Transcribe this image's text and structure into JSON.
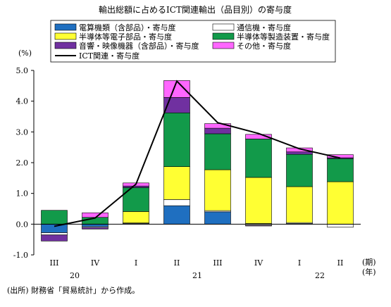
{
  "chart_data": {
    "type": "bar",
    "title": "輸出総額に占めるICT関連輸出（品目別）の寄与度",
    "ylabel": "(%)",
    "x_unit_label": "(期)",
    "year_unit_label": "(年)",
    "ylim": [
      -1.0,
      5.0
    ],
    "y_ticks": [
      "5.0",
      "4.0",
      "3.0",
      "2.0",
      "1.0",
      "0.0",
      "-1.0"
    ],
    "categories": [
      "III",
      "IV",
      "I",
      "II",
      "III",
      "IV",
      "I",
      "II"
    ],
    "year_labels": [
      {
        "label": "20",
        "span": [
          0,
          1
        ]
      },
      {
        "label": "21",
        "span": [
          2,
          5
        ]
      },
      {
        "label": "22",
        "span": [
          6,
          7
        ]
      }
    ],
    "stacked": true,
    "series": [
      {
        "name": "電算機類（含部品）・寄与度",
        "color": "#1f6fc0",
        "type": "bar",
        "values": [
          -0.28,
          -0.08,
          0.02,
          0.6,
          0.4,
          0.02,
          0.02,
          0.0
        ]
      },
      {
        "name": "通信機・寄与度",
        "color": "#ffffff",
        "type": "bar",
        "values": [
          -0.07,
          -0.03,
          0.02,
          0.2,
          0.04,
          -0.04,
          0.03,
          -0.1
        ]
      },
      {
        "name": "半導体等電子部品・寄与度",
        "color": "#ffff33",
        "type": "bar",
        "values": [
          0.0,
          0.0,
          0.37,
          1.07,
          1.33,
          1.5,
          1.17,
          1.38
        ]
      },
      {
        "name": "半導体等製造装置・寄与度",
        "color": "#129a4a",
        "type": "bar",
        "values": [
          0.45,
          0.22,
          0.78,
          1.75,
          1.17,
          1.25,
          1.05,
          0.75
        ]
      },
      {
        "name": "音響・映像機器（含部品）・寄与度",
        "color": "#7030a0",
        "type": "bar",
        "values": [
          -0.2,
          -0.05,
          0.05,
          0.5,
          0.18,
          -0.02,
          0.08,
          0.03
        ]
      },
      {
        "name": "その他・寄与度",
        "color": "#ff66ff",
        "type": "bar",
        "values": [
          0.0,
          0.15,
          0.1,
          0.55,
          0.15,
          0.15,
          0.13,
          0.1
        ]
      },
      {
        "name": "ICT関連・寄与度",
        "color": "#000000",
        "type": "line",
        "values": [
          -0.07,
          0.2,
          1.3,
          4.65,
          3.3,
          2.95,
          2.45,
          2.15
        ]
      }
    ]
  },
  "source_note": "(出所) 財務省「貿易統計」から作成。"
}
